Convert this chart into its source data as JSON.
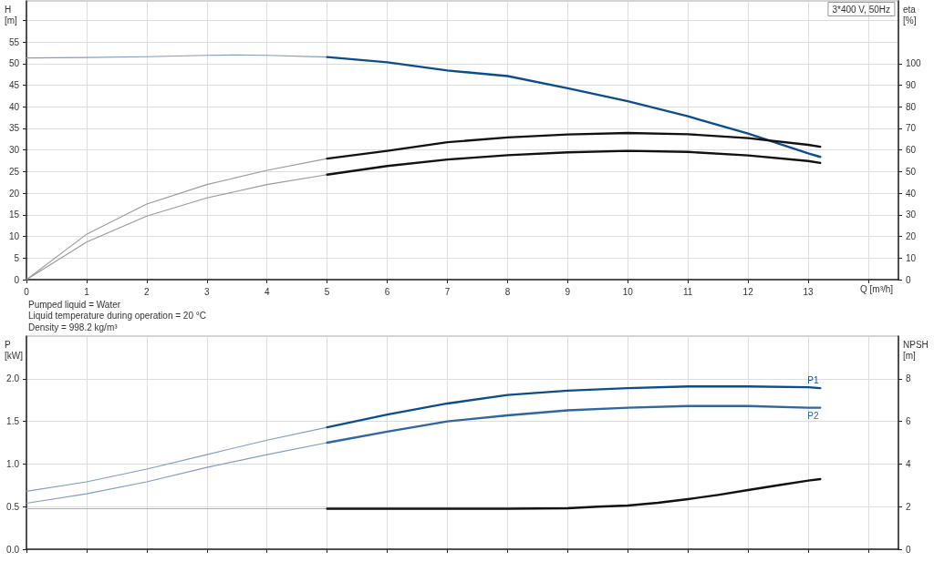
{
  "chart_data": [
    {
      "type": "line",
      "title": "3*400 V, 50Hz",
      "xlabel": "Q [m³/h]",
      "ylabel": "H [m]",
      "y2label": "eta [%]",
      "grid": true,
      "xlim": [
        0,
        14.5
      ],
      "xticks": [
        0,
        1,
        2,
        3,
        4,
        5,
        6,
        7,
        8,
        9,
        10,
        11,
        12,
        13,
        {
          "value": 14,
          "label": null
        }
      ],
      "ylim": [
        0,
        64.5
      ],
      "yticks": [
        0,
        5,
        10,
        15,
        20,
        25,
        30,
        35,
        40,
        45,
        50,
        55,
        {
          "value": 60,
          "label": null
        }
      ],
      "y2lim": [
        0,
        129
      ],
      "y2ticks": [
        0,
        10,
        20,
        30,
        40,
        50,
        60,
        70,
        80,
        90,
        100
      ],
      "series": [
        {
          "color": "#7f9ec4",
          "x": [
            0,
            1,
            2,
            3,
            3.5,
            4,
            5
          ],
          "values": [
            51.3,
            51.4,
            51.6,
            51.9,
            52,
            51.9,
            51.5
          ]
        },
        {
          "color": "#0e4d8c",
          "x": [
            5,
            6,
            7,
            8,
            9,
            10,
            11,
            12,
            13,
            13.2
          ],
          "values": [
            51.5,
            50.3,
            48.4,
            47.1,
            44.3,
            41.3,
            37.8,
            33.8,
            29.2,
            28.4
          ]
        },
        {
          "color": "#9a9a9a",
          "axis": "y2",
          "x": [
            0,
            1,
            2,
            3,
            4,
            5
          ],
          "values": [
            0,
            21,
            35,
            44,
            50.6,
            56
          ]
        },
        {
          "color": "#111111",
          "axis": "y2",
          "x": [
            5,
            6,
            7,
            8,
            9,
            10,
            11,
            12,
            13,
            13.2
          ],
          "values": [
            56,
            59.6,
            63.6,
            65.8,
            67.2,
            67.9,
            67.3,
            65.5,
            62.4,
            61.5
          ]
        },
        {
          "color": "#9a9a9a",
          "axis": "y2",
          "x": [
            0,
            1,
            2,
            3,
            4,
            5
          ],
          "values": [
            0,
            17.4,
            29.4,
            37.8,
            44,
            48.6
          ]
        },
        {
          "color": "#111111",
          "axis": "y2",
          "x": [
            5,
            6,
            7,
            8,
            9,
            10,
            11,
            12,
            13,
            13.2
          ],
          "values": [
            48.6,
            52.6,
            55.6,
            57.6,
            58.9,
            59.6,
            59.1,
            57.5,
            54.9,
            54
          ]
        }
      ]
    },
    {
      "type": "line",
      "ylabel": "P [kW]",
      "y2label": "NPSH [m]",
      "grid": true,
      "tick_labels": "y",
      "annotations": [
        "Pumped liquid = Water",
        "Liquid temperature during operation = 20 °C",
        "Density = 998.2 kg/m³"
      ],
      "xlim": [
        0,
        14.5
      ],
      "xticks": [
        0,
        1,
        2,
        3,
        4,
        5,
        6,
        7,
        8,
        9,
        10,
        11,
        12,
        13,
        14
      ],
      "ylim": [
        0,
        2.5
      ],
      "yticks": [
        {
          "value": 0,
          "label": "0.0"
        },
        0.5,
        {
          "value": 1,
          "label": "1.0"
        },
        1.5,
        {
          "value": 2,
          "label": "2.0"
        }
      ],
      "y2lim": [
        0,
        10
      ],
      "y2ticks": [
        0,
        2,
        4,
        6,
        8
      ],
      "series": [
        {
          "color": "#7f9ec4",
          "x": [
            0,
            1,
            2,
            3,
            4,
            5
          ],
          "values": [
            0.68,
            0.79,
            0.94,
            1.11,
            1.28,
            1.43
          ]
        },
        {
          "name": "P1",
          "color": "#0e4d8c",
          "x": [
            5,
            6,
            7,
            8,
            9,
            10,
            11,
            12,
            13,
            13.2
          ],
          "values": [
            1.43,
            1.58,
            1.71,
            1.81,
            1.86,
            1.89,
            1.91,
            1.91,
            1.9,
            1.89
          ]
        },
        {
          "color": "#7f9ec4",
          "x": [
            0,
            1,
            2,
            3,
            4,
            5
          ],
          "values": [
            0.54,
            0.65,
            0.79,
            0.96,
            1.11,
            1.25
          ]
        },
        {
          "name": "P2",
          "color": "#2f66a3",
          "x": [
            5,
            6,
            7,
            8,
            9,
            10,
            11,
            12,
            13,
            13.2
          ],
          "values": [
            1.25,
            1.38,
            1.5,
            1.57,
            1.63,
            1.66,
            1.68,
            1.68,
            1.66,
            1.66
          ]
        },
        {
          "color": "#b0b0b0",
          "axis": "y2",
          "x": [
            0,
            1,
            2,
            3,
            4,
            5
          ],
          "values": [
            1.9,
            1.9,
            1.9,
            1.9,
            1.9,
            1.9
          ]
        },
        {
          "color": "#111111",
          "axis": "y2",
          "x": [
            5,
            6,
            7,
            8,
            9,
            9.5,
            10,
            10.5,
            11,
            11.5,
            12,
            12.5,
            13,
            13.2
          ],
          "values": [
            1.9,
            1.9,
            1.9,
            1.9,
            1.92,
            2,
            2.05,
            2.18,
            2.35,
            2.55,
            2.78,
            3,
            3.22,
            3.29
          ]
        }
      ]
    }
  ]
}
